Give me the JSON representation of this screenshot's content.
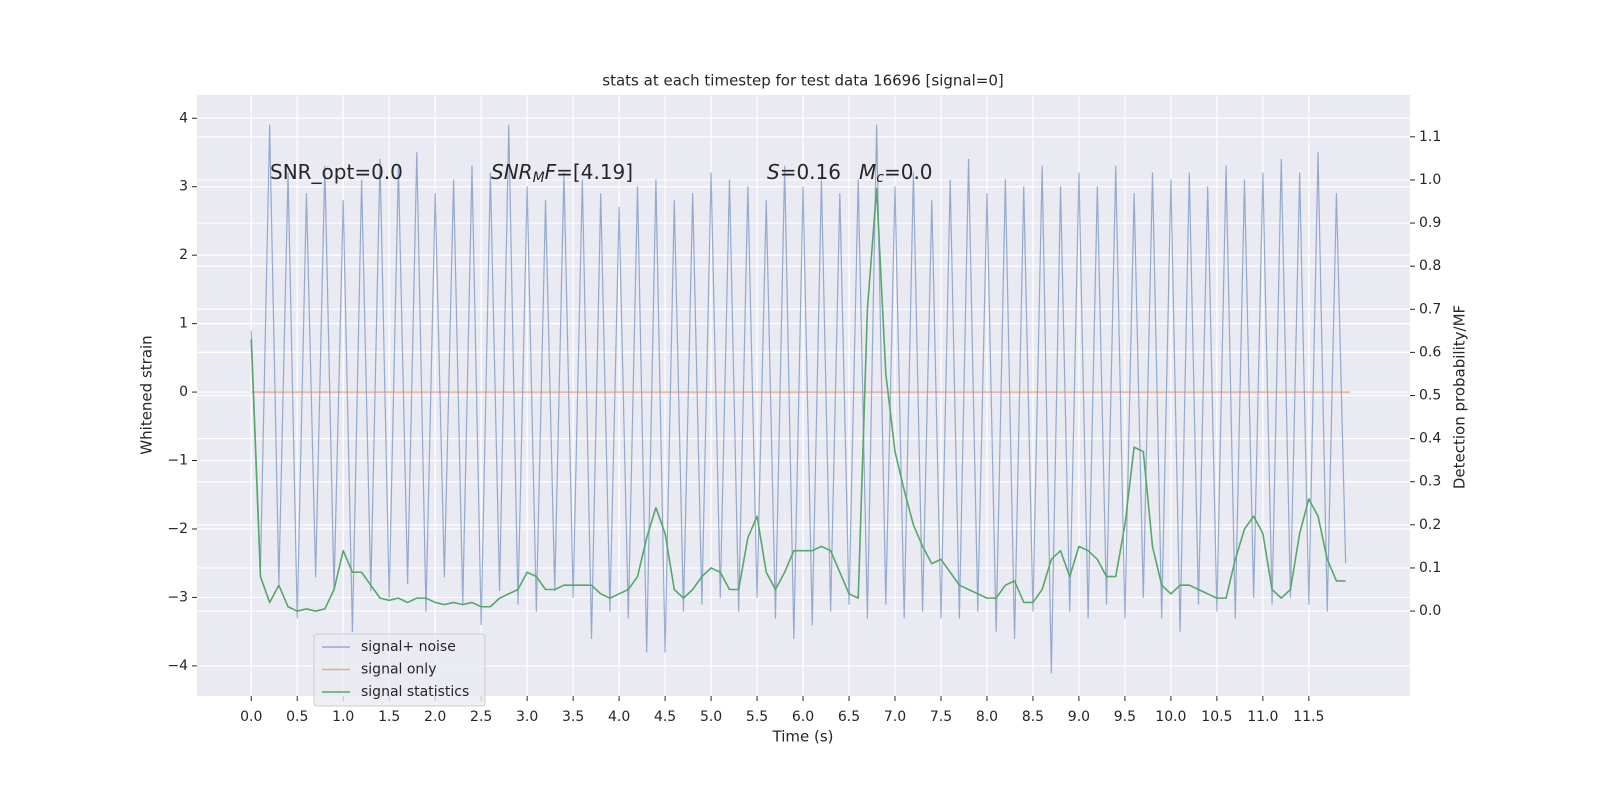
{
  "chart_data": {
    "type": "line",
    "title": "stats at each timestep for test data 16696 [signal=0]",
    "xlabel": "Time (s)",
    "ylabel": "Whitened strain",
    "y2label": "Detection probability/MF",
    "annotations": [
      {
        "text": "SNR_opt=0.0"
      },
      {
        "italic": "SNR",
        "sub": "M",
        "italic2": "F",
        "text": "=[4.19]"
      },
      {
        "italic": "S",
        "text": "=0.16"
      },
      {
        "italic": "M",
        "sub": "c",
        "text": "=0.0"
      }
    ],
    "x": [
      0.0,
      0.1,
      0.2,
      0.3,
      0.4,
      0.5,
      0.6,
      0.7,
      0.8,
      0.9,
      1.0,
      1.1,
      1.2,
      1.3,
      1.4,
      1.5,
      1.6,
      1.7,
      1.8,
      1.9,
      2.0,
      2.1,
      2.2,
      2.3,
      2.4,
      2.5,
      2.6,
      2.7,
      2.8,
      2.9,
      3.0,
      3.1,
      3.2,
      3.3,
      3.4,
      3.5,
      3.6,
      3.7,
      3.8,
      3.9,
      4.0,
      4.1,
      4.2,
      4.3,
      4.4,
      4.5,
      4.6,
      4.7,
      4.8,
      4.9,
      5.0,
      5.1,
      5.2,
      5.3,
      5.4,
      5.5,
      5.6,
      5.7,
      5.8,
      5.9,
      6.0,
      6.1,
      6.2,
      6.3,
      6.4,
      6.5,
      6.6,
      6.7,
      6.8,
      6.9,
      7.0,
      7.1,
      7.2,
      7.3,
      7.4,
      7.5,
      7.6,
      7.7,
      7.8,
      7.9,
      8.0,
      8.1,
      8.2,
      8.3,
      8.4,
      8.5,
      8.6,
      8.7,
      8.8,
      8.9,
      9.0,
      9.1,
      9.2,
      9.3,
      9.4,
      9.5,
      9.6,
      9.7,
      9.8,
      9.9,
      10.0,
      10.1,
      10.2,
      10.3,
      10.4,
      10.5,
      10.6,
      10.7,
      10.8,
      10.9,
      11.0,
      11.1,
      11.2,
      11.3,
      11.4,
      11.5,
      11.6,
      11.7,
      11.8,
      11.9
    ],
    "series": [
      {
        "name": "signal+ noise",
        "color": "#4c72b0",
        "values": [
          0.9,
          -2.6,
          3.9,
          -2.8,
          3.2,
          -3.3,
          2.9,
          -2.7,
          3.3,
          -2.9,
          2.8,
          -3.5,
          3.1,
          -2.9,
          3.4,
          -3.0,
          3.3,
          -2.8,
          3.5,
          -3.2,
          2.9,
          -2.7,
          3.1,
          -3.1,
          3.3,
          -3.4,
          3.2,
          -2.9,
          3.9,
          -3.1,
          3.0,
          -3.2,
          2.8,
          -2.9,
          3.2,
          -3.0,
          3.1,
          -3.6,
          2.9,
          -3.2,
          2.7,
          -3.3,
          3.0,
          -3.8,
          3.1,
          -3.8,
          2.8,
          -3.2,
          2.9,
          -3.1,
          3.2,
          -3.0,
          3.1,
          -3.2,
          3.0,
          -3.0,
          2.8,
          -3.3,
          3.3,
          -3.6,
          3.0,
          -3.4,
          3.1,
          -3.2,
          2.9,
          -3.1,
          3.1,
          -3.3,
          3.9,
          -3.1,
          3.0,
          -3.3,
          3.2,
          -3.2,
          2.8,
          -3.3,
          3.1,
          -3.3,
          3.4,
          -3.2,
          2.9,
          -3.5,
          3.1,
          -3.6,
          3.0,
          -3.2,
          3.3,
          -4.1,
          3.0,
          -3.2,
          3.2,
          -3.3,
          3.0,
          -3.1,
          3.3,
          -3.3,
          2.9,
          -3.0,
          3.2,
          -3.3,
          3.1,
          -3.5,
          3.2,
          -3.1,
          3.0,
          -3.2,
          3.3,
          -3.3,
          3.1,
          -3.0,
          3.2,
          -3.1,
          3.4,
          -3.0,
          3.2,
          -3.1,
          3.5,
          -3.2,
          2.9,
          -2.5
        ]
      },
      {
        "name": "signal only",
        "color": "#dd8452",
        "x": [
          0.0,
          11.95
        ],
        "values": [
          0,
          0
        ]
      },
      {
        "name": "signal statistics",
        "color": "#55a868",
        "axis": "y2",
        "values": [
          0.63,
          0.08,
          0.02,
          0.06,
          0.01,
          0.0,
          0.005,
          0.0,
          0.005,
          0.05,
          0.14,
          0.09,
          0.09,
          0.06,
          0.03,
          0.025,
          0.03,
          0.02,
          0.03,
          0.03,
          0.02,
          0.015,
          0.02,
          0.015,
          0.02,
          0.01,
          0.01,
          0.03,
          0.04,
          0.05,
          0.09,
          0.08,
          0.05,
          0.05,
          0.06,
          0.06,
          0.06,
          0.06,
          0.04,
          0.03,
          0.04,
          0.05,
          0.08,
          0.17,
          0.24,
          0.18,
          0.05,
          0.03,
          0.05,
          0.08,
          0.1,
          0.09,
          0.05,
          0.05,
          0.17,
          0.22,
          0.09,
          0.05,
          0.09,
          0.14,
          0.14,
          0.14,
          0.15,
          0.14,
          0.09,
          0.04,
          0.03,
          0.7,
          0.98,
          0.55,
          0.37,
          0.28,
          0.2,
          0.15,
          0.11,
          0.12,
          0.09,
          0.06,
          0.05,
          0.04,
          0.03,
          0.03,
          0.06,
          0.07,
          0.02,
          0.02,
          0.05,
          0.12,
          0.14,
          0.08,
          0.15,
          0.14,
          0.12,
          0.08,
          0.08,
          0.2,
          0.38,
          0.37,
          0.15,
          0.06,
          0.04,
          0.06,
          0.06,
          0.05,
          0.04,
          0.03,
          0.03,
          0.12,
          0.19,
          0.22,
          0.18,
          0.05,
          0.03,
          0.05,
          0.18,
          0.26,
          0.22,
          0.12,
          0.07,
          0.07
        ]
      }
    ],
    "xlim": [
      -0.59,
      12.6
    ],
    "xticks": [
      {
        "value": 0,
        "label": "0.0"
      },
      0.5,
      {
        "value": 1,
        "label": "1.0"
      },
      1.5,
      {
        "value": 2,
        "label": "2.0"
      },
      2.5,
      {
        "value": 3,
        "label": "3.0"
      },
      3.5,
      {
        "value": 4,
        "label": "4.0"
      },
      4.5,
      {
        "value": 5,
        "label": "5.0"
      },
      5.5,
      {
        "value": 6,
        "label": "6.0"
      },
      6.5,
      {
        "value": 7,
        "label": "7.0"
      },
      7.5,
      {
        "value": 8,
        "label": "8.0"
      },
      8.5,
      {
        "value": 9,
        "label": "9.0"
      },
      9.5,
      {
        "value": 10,
        "label": "10.0"
      },
      10.5,
      {
        "value": 11,
        "label": "11.0"
      },
      11.5
    ],
    "ylim": [
      -4.44,
      4.34
    ],
    "yticks": [
      {
        "value": -4,
        "label": "−4"
      },
      {
        "value": -3,
        "label": "−3"
      },
      {
        "value": -2,
        "label": "−2"
      },
      {
        "value": -1,
        "label": "−1"
      },
      0,
      1,
      2,
      3,
      4
    ],
    "y2lim": [
      -0.197,
      1.197
    ],
    "y2ticks": [
      {
        "value": 0,
        "label": "0.0"
      },
      0.1,
      0.2,
      0.3,
      0.4,
      0.5,
      0.6,
      0.7,
      0.8,
      0.9,
      {
        "value": 1,
        "label": "1.0"
      },
      1.1
    ],
    "grid": true,
    "legend": "lower left"
  }
}
